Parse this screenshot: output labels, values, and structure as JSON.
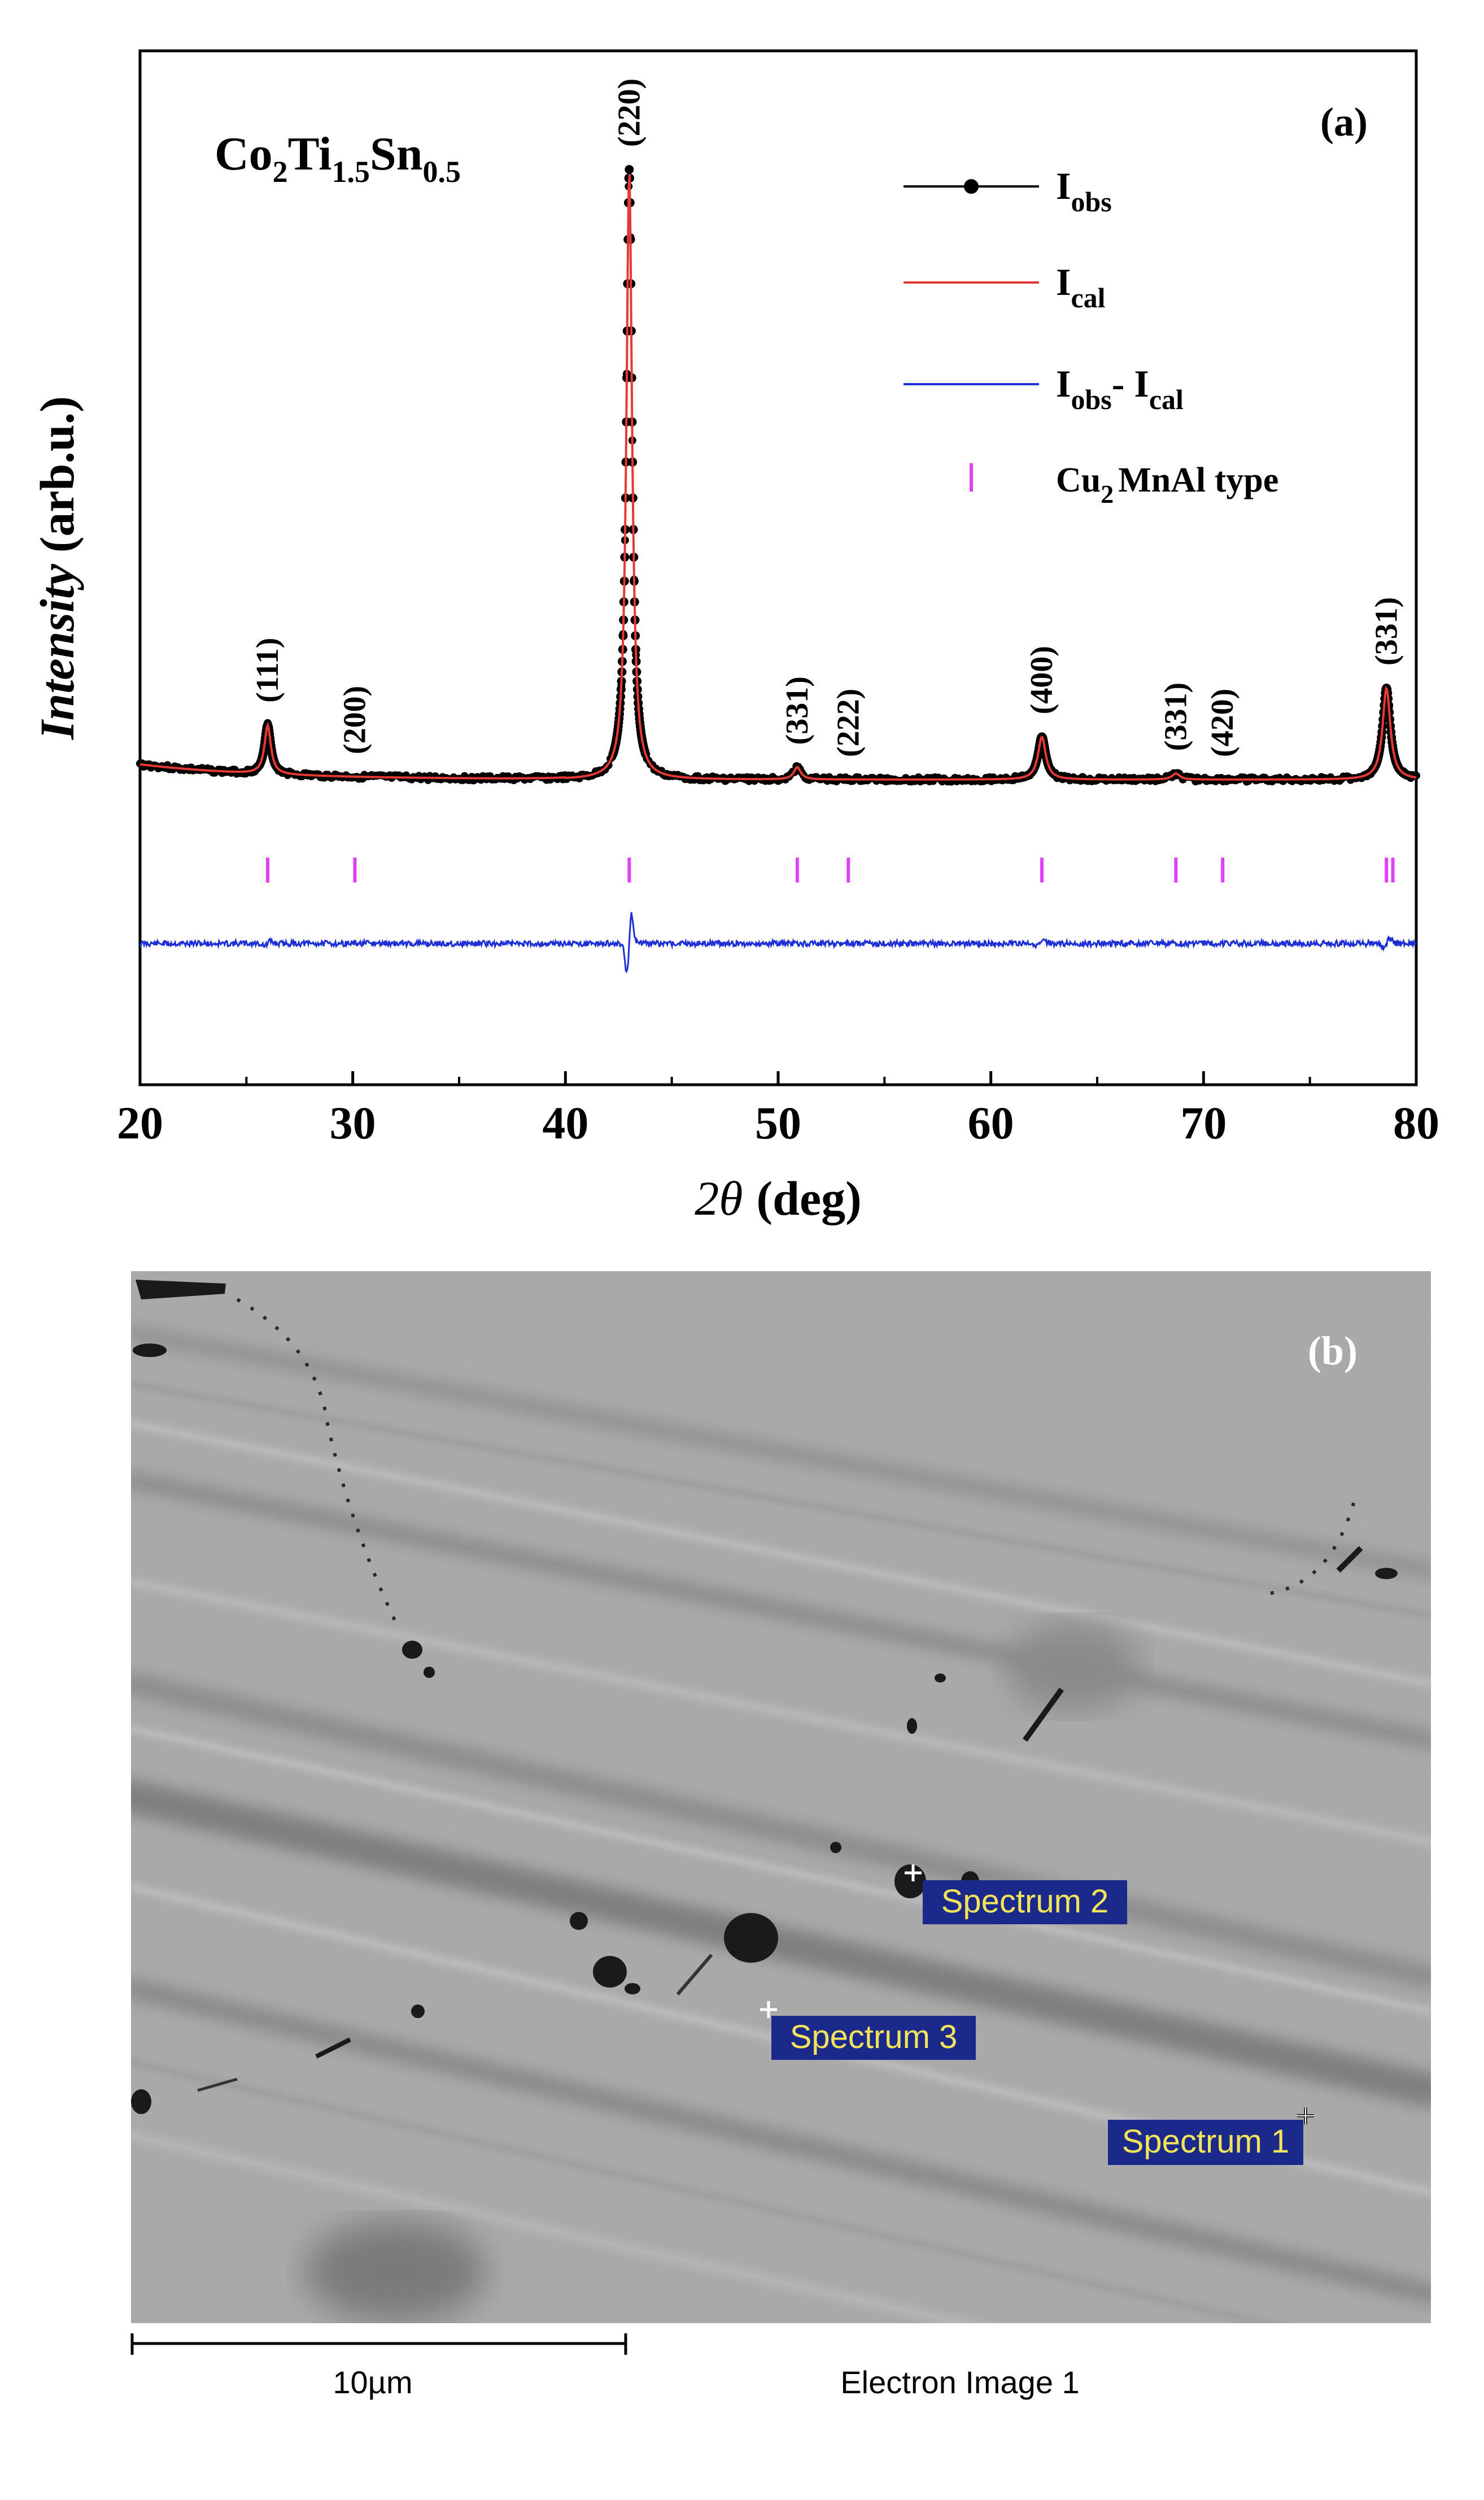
{
  "chart_data": {
    "type": "line",
    "panel_label": "(a)",
    "compound": {
      "base": "Co",
      "s1": "2",
      "m1": "Ti",
      "s2": "1.5",
      "m2": "Sn",
      "s3": "0.5"
    },
    "xlabel": {
      "italic": "2θ",
      "rest": "(deg)"
    },
    "ylabel": {
      "italic": "Intensity",
      "rest": "(arb.u.)"
    },
    "xlim": [
      20,
      80
    ],
    "xticks": [
      "20",
      "30",
      "40",
      "50",
      "60",
      "70",
      "80"
    ],
    "legend": {
      "placement": "top-right",
      "entries": [
        {
          "main": "I",
          "sub": "obs",
          "style": "line-dot",
          "color": "#000000"
        },
        {
          "main": "I",
          "sub": "cal",
          "style": "line",
          "color": "#e53935"
        },
        {
          "main": "I",
          "sub": "obs",
          "mid": "- I",
          "sub2": "cal",
          "style": "line",
          "color": "#1f2fd6"
        },
        {
          "main": "Cu",
          "sub": "2",
          "tail": "MnAl type",
          "style": "tick",
          "color": "#e040fb"
        }
      ]
    },
    "peaks": [
      {
        "x": 26.0,
        "height": 0.08,
        "width": 0.18,
        "label": "(111)"
      },
      {
        "x": 30.1,
        "height": 0.0,
        "width": 0.18,
        "label": "(200)"
      },
      {
        "x": 43.0,
        "height": 1.0,
        "width": 0.16,
        "label": "(220)"
      },
      {
        "x": 50.9,
        "height": 0.02,
        "width": 0.2,
        "label": "(331)"
      },
      {
        "x": 53.3,
        "height": 0.0,
        "width": 0.2,
        "label": "(222)"
      },
      {
        "x": 62.4,
        "height": 0.07,
        "width": 0.22,
        "label": "(400)"
      },
      {
        "x": 68.7,
        "height": 0.01,
        "width": 0.22,
        "label": "(331)"
      },
      {
        "x": 70.9,
        "height": 0.0,
        "width": 0.22,
        "label": "(420)"
      },
      {
        "x": 78.6,
        "height": 0.15,
        "width": 0.22,
        "label": "(331)"
      }
    ],
    "bragg_positions": [
      26.0,
      30.1,
      43.0,
      50.9,
      53.3,
      62.4,
      68.7,
      70.9,
      78.6,
      78.9
    ],
    "background": {
      "at_20": 0.09,
      "at_40": 0.0,
      "at_80": 0.0
    }
  },
  "sem_image": {
    "panel_label": "(b)",
    "spectra": [
      {
        "label": "Spectrum 2"
      },
      {
        "label": "Spectrum 3"
      },
      {
        "label": "Spectrum 1"
      }
    ],
    "scale_bar_label": "10µm",
    "image_caption": "Electron Image 1"
  }
}
